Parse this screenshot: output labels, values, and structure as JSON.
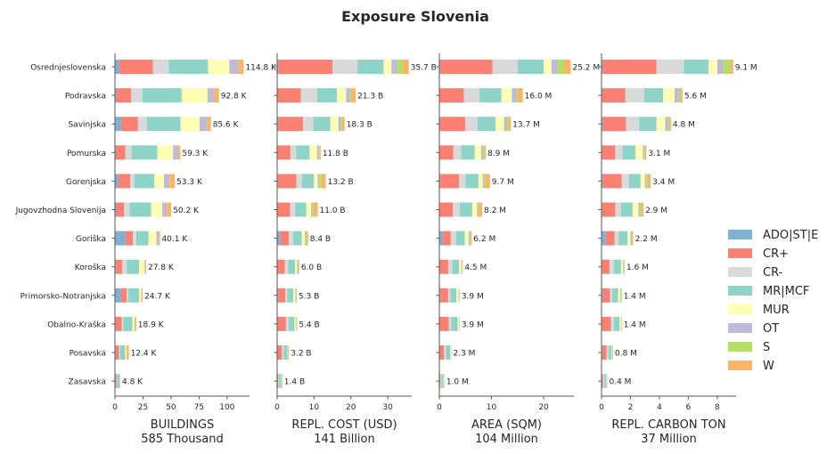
{
  "chart_data": {
    "type": "bar",
    "orientation": "horizontal",
    "stacked": true,
    "title": "Exposure Slovenia",
    "categories": [
      "Osrednjeslovenska",
      "Podravska",
      "Savinjska",
      "Pomurska",
      "Gorenjska",
      "Jugovzhodna Slovenija",
      "Goriška",
      "Koroška",
      "Primorsko-Notranjska",
      "Obalno-Kraška",
      "Posavska",
      "Zasavska"
    ],
    "legend": {
      "position": "right",
      "entries": [
        {
          "name": "ADO|ST|E",
          "color": "#80b1d3"
        },
        {
          "name": "CR+",
          "color": "#fb8072"
        },
        {
          "name": "CR-",
          "color": "#d9d9d9"
        },
        {
          "name": "MR|MCF",
          "color": "#8dd3c7"
        },
        {
          "name": "MUR",
          "color": "#ffffb3"
        },
        {
          "name": "OT",
          "color": "#bebada"
        },
        {
          "name": "S",
          "color": "#b3de69"
        },
        {
          "name": "W",
          "color": "#fdb462"
        }
      ]
    },
    "panels": [
      {
        "xlabel": "BUILDINGS",
        "total": "585 Thousand",
        "xlim": [
          0,
          120
        ],
        "ticks": [
          0,
          25,
          50,
          75,
          100
        ],
        "tick_labels": [
          "0",
          "25",
          "50",
          "75",
          "100"
        ],
        "labels": [
          "114.8 K",
          "92.8 K",
          "85.6 K",
          "59.3 K",
          "53.3 K",
          "50.2 K",
          "40.1 K",
          "27.8 K",
          "24.7 K",
          "18.9 K",
          "12.4 K",
          "4.8 K"
        ],
        "values": [
          [
            4,
            30,
            14,
            35,
            19,
            8,
            0,
            4.8
          ],
          [
            1.5,
            13,
            10,
            35,
            23,
            6,
            0,
            4.3
          ],
          [
            5.5,
            15,
            8,
            30,
            17,
            7,
            0,
            3.1
          ],
          [
            0.8,
            8.5,
            5.5,
            23,
            14,
            4.5,
            0,
            2
          ],
          [
            3.2,
            10.5,
            3.5,
            18,
            8.5,
            5,
            0,
            4.6
          ],
          [
            1.2,
            7,
            5,
            19,
            10,
            4,
            0,
            4
          ],
          [
            9.5,
            6.5,
            3,
            11,
            7,
            2,
            0,
            1.1
          ],
          [
            1,
            5.5,
            4,
            11,
            5,
            0.5,
            0,
            0.8
          ],
          [
            5.5,
            5,
            1.5,
            9.5,
            2,
            0.3,
            0,
            0.9
          ],
          [
            0.5,
            5.5,
            1.5,
            8,
            2,
            0,
            0,
            1.4
          ],
          [
            0.7,
            3,
            1,
            4.5,
            1.2,
            0,
            0,
            2
          ],
          [
            0.3,
            1,
            0.7,
            2.3,
            0.3,
            0,
            0,
            0.2
          ]
        ]
      },
      {
        "xlabel": "REPL. COST (USD)",
        "total": "141 Billion",
        "xlim": [
          0,
          36.5
        ],
        "ticks": [
          0,
          10,
          20,
          30
        ],
        "tick_labels": [
          "0",
          "10",
          "20",
          "30"
        ],
        "labels": [
          "35.7 B",
          "21.3 B",
          "18.3 B",
          "11.8 B",
          "13.2 B",
          "11.0 B",
          "8.4 B",
          "6.0 B",
          "5.3 B",
          "5.4 B",
          "3.2 B",
          "1.4 B"
        ],
        "values": [
          [
            0.3,
            14.7,
            6.8,
            7.1,
            2.1,
            1.5,
            1.6,
            1.6
          ],
          [
            0.1,
            6.3,
            4.5,
            5.3,
            2.5,
            1.1,
            0.3,
            1.2
          ],
          [
            0.3,
            6.7,
            2.8,
            4.6,
            2.2,
            0.7,
            0.3,
            0.7
          ],
          [
            0.1,
            3.5,
            1.6,
            3.6,
            2.0,
            0.4,
            0.2,
            0.4
          ],
          [
            0.2,
            5.0,
            1.5,
            3.3,
            1.0,
            0.4,
            0.6,
            1.2
          ],
          [
            0.1,
            3.4,
            1.4,
            3.0,
            1.3,
            0.4,
            0.3,
            1.1
          ],
          [
            0.9,
            2.3,
            1.1,
            2.4,
            0.8,
            0.3,
            0.3,
            0.3
          ],
          [
            0.1,
            2.0,
            0.9,
            1.9,
            0.5,
            0.2,
            0.2,
            0.2
          ],
          [
            0.3,
            1.9,
            0.5,
            1.7,
            0.5,
            0.1,
            0.2,
            0.1
          ],
          [
            0.1,
            2.3,
            0.7,
            1.6,
            0.4,
            0,
            0.2,
            0.1
          ],
          [
            0.1,
            1.2,
            0.5,
            1.0,
            0.1,
            0,
            0.2,
            0.1
          ],
          [
            0,
            0.3,
            0.2,
            0.6,
            0.1,
            0,
            0.2,
            0
          ]
        ]
      },
      {
        "xlabel": "AREA (SQM)",
        "total": "104 Million",
        "xlim": [
          0,
          25.8
        ],
        "ticks": [
          0,
          10,
          20
        ],
        "tick_labels": [
          "0",
          "10",
          "20"
        ],
        "labels": [
          "25.2 M",
          "16.0 M",
          "13.7 M",
          "8.9 M",
          "9.7 M",
          "8.2 M",
          "6.2 M",
          "4.5 M",
          "3.9 M",
          "3.9 M",
          "2.3 M",
          "1.0 M"
        ],
        "values": [
          [
            0.2,
            10.0,
            4.8,
            5.0,
            1.5,
            1.2,
            1.3,
            1.2
          ],
          [
            0.1,
            4.6,
            3.0,
            4.2,
            2.0,
            0.9,
            0.3,
            0.9
          ],
          [
            0.2,
            4.8,
            2.3,
            3.5,
            1.6,
            0.5,
            0.3,
            0.5
          ],
          [
            0.1,
            2.6,
            1.5,
            2.6,
            1.2,
            0.3,
            0.3,
            0.3
          ],
          [
            0.2,
            3.6,
            1.2,
            2.5,
            0.8,
            0.3,
            0.3,
            0.8
          ],
          [
            0.1,
            2.5,
            1.3,
            2.4,
            0.9,
            0.2,
            0.2,
            0.6
          ],
          [
            0.7,
            1.5,
            1.0,
            1.7,
            0.7,
            0.2,
            0.2,
            0.2
          ],
          [
            0.1,
            1.6,
            0.8,
            1.3,
            0.4,
            0.1,
            0.1,
            0.1
          ],
          [
            0.2,
            1.5,
            0.4,
            1.2,
            0.4,
            0.1,
            0.1,
            0
          ],
          [
            0.1,
            1.7,
            0.5,
            1.2,
            0.3,
            0,
            0.1,
            0
          ],
          [
            0.1,
            0.8,
            0.4,
            0.8,
            0.1,
            0,
            0.1,
            0
          ],
          [
            0,
            0.2,
            0.2,
            0.4,
            0.1,
            0,
            0.1,
            0
          ]
        ]
      },
      {
        "xlabel": "REPL. CARBON TON",
        "total": "37 Million",
        "xlim": [
          0,
          9.3
        ],
        "ticks": [
          0,
          2,
          4,
          6,
          8
        ],
        "tick_labels": [
          "0",
          "2",
          "4",
          "6",
          "8"
        ],
        "labels": [
          "9.1 M",
          "5.6 M",
          "4.8 M",
          "3.1 M",
          "3.4 M",
          "2.9 M",
          "2.2 M",
          "1.6 M",
          "1.4 M",
          "1.4 M",
          "0.8 M",
          "0.4 M"
        ],
        "values": [
          [
            0.1,
            3.7,
            1.9,
            1.7,
            0.6,
            0.4,
            0.5,
            0.2
          ],
          [
            0.05,
            1.6,
            1.3,
            1.3,
            0.8,
            0.3,
            0.1,
            0.15
          ],
          [
            0.1,
            1.6,
            0.9,
            1.2,
            0.6,
            0.2,
            0.1,
            0.1
          ],
          [
            0.05,
            0.9,
            0.5,
            0.9,
            0.5,
            0.1,
            0.05,
            0.1
          ],
          [
            0.1,
            1.3,
            0.5,
            0.8,
            0.3,
            0.1,
            0.1,
            0.2
          ],
          [
            0.05,
            0.9,
            0.4,
            0.8,
            0.4,
            0.1,
            0.1,
            0.15
          ],
          [
            0.3,
            0.6,
            0.3,
            0.6,
            0.2,
            0.1,
            0.05,
            0.05
          ],
          [
            0.05,
            0.5,
            0.3,
            0.5,
            0.15,
            0.05,
            0.05,
            0
          ],
          [
            0.1,
            0.5,
            0.15,
            0.4,
            0.15,
            0.05,
            0.05,
            0
          ],
          [
            0.05,
            0.6,
            0.2,
            0.4,
            0.1,
            0,
            0.05,
            0
          ],
          [
            0.05,
            0.3,
            0.15,
            0.2,
            0.05,
            0,
            0.05,
            0
          ],
          [
            0,
            0.1,
            0.1,
            0.15,
            0.03,
            0,
            0.02,
            0
          ]
        ]
      }
    ]
  }
}
